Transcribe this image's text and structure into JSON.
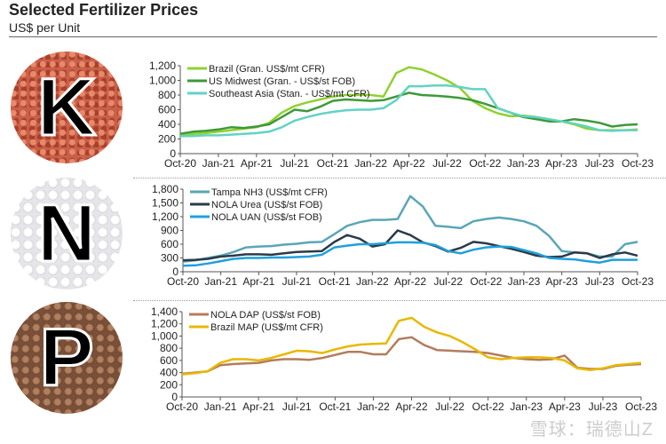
{
  "header": {
    "title": "Selected Fertilizer Prices",
    "subtitle": "US$ per Unit"
  },
  "panels": [
    {
      "letter": "K"
    },
    {
      "letter": "N"
    },
    {
      "letter": "P"
    }
  ],
  "watermark": "雪球：瑞德山Z",
  "chart_data": [
    {
      "type": "line",
      "title": "",
      "xlabel": "",
      "ylabel": "",
      "ylim": [
        0,
        1200
      ],
      "yticks": [
        "0",
        "200",
        "400",
        "600",
        "800",
        "1,000",
        "1,200"
      ],
      "x_tick_labels": [
        "Oct-20",
        "Jan-21",
        "Apr-21",
        "Jul-21",
        "Oct-21",
        "Jan-22",
        "Apr-22",
        "Jul-22",
        "Oct-22",
        "Jan-23",
        "Apr-23",
        "Jul-23",
        "Oct-23"
      ],
      "x": "monthly Oct-20 to Oct-23",
      "legend": "top-left",
      "series": [
        {
          "name": "Brazil (Gran. US$/mt CFR)",
          "color": "#8fd12f",
          "values": [
            260,
            270,
            280,
            300,
            320,
            340,
            360,
            420,
            560,
            650,
            700,
            740,
            780,
            800,
            800,
            800,
            780,
            1100,
            1180,
            1150,
            1080,
            1000,
            900,
            720,
            620,
            550,
            510,
            520,
            500,
            470,
            440,
            400,
            340,
            320,
            320,
            320,
            330
          ]
        },
        {
          "name": "US Midwest (Gran. - US$/st FOB)",
          "color": "#3c9a38",
          "values": [
            270,
            300,
            310,
            330,
            360,
            350,
            370,
            400,
            500,
            600,
            580,
            640,
            720,
            740,
            730,
            720,
            730,
            780,
            830,
            800,
            790,
            780,
            760,
            730,
            680,
            620,
            560,
            500,
            470,
            440,
            440,
            470,
            450,
            420,
            370,
            390,
            400
          ]
        },
        {
          "name": "Southeast Asia (Stan. - US$/mt CFR)",
          "color": "#62d3c4",
          "values": [
            240,
            240,
            250,
            250,
            260,
            270,
            280,
            300,
            360,
            450,
            500,
            540,
            570,
            590,
            600,
            600,
            620,
            730,
            920,
            920,
            930,
            930,
            910,
            880,
            880,
            620,
            560,
            510,
            500,
            470,
            440,
            410,
            370,
            320,
            310,
            320,
            320
          ]
        }
      ]
    },
    {
      "type": "line",
      "title": "",
      "xlabel": "",
      "ylabel": "",
      "ylim": [
        0,
        1800
      ],
      "yticks": [
        "0",
        "300",
        "600",
        "900",
        "1,200",
        "1,500",
        "1,800"
      ],
      "x_tick_labels": [
        "Oct-20",
        "Jan-21",
        "Apr-21",
        "Jul-21",
        "Oct-21",
        "Jan-22",
        "Apr-22",
        "Jul-22",
        "Oct-22",
        "Jan-23",
        "Apr-23",
        "Jul-23",
        "Oct-23"
      ],
      "x": "monthly Oct-20 to Oct-23",
      "legend": "top-left",
      "series": [
        {
          "name": "Tampa NH3 (US$/mt CFR)",
          "color": "#5aa6b6",
          "values": [
            220,
            250,
            300,
            350,
            430,
            530,
            550,
            560,
            590,
            610,
            640,
            650,
            820,
            1000,
            1080,
            1130,
            1130,
            1150,
            1650,
            1420,
            1000,
            980,
            950,
            1100,
            1150,
            1180,
            1150,
            1100,
            1000,
            780,
            450,
            420,
            400,
            330,
            330,
            600,
            650
          ]
        },
        {
          "name": "NOLA Urea (US$/st FOB)",
          "color": "#2b3a48",
          "values": [
            250,
            260,
            280,
            330,
            350,
            380,
            380,
            370,
            400,
            430,
            440,
            450,
            650,
            800,
            720,
            550,
            600,
            900,
            800,
            640,
            560,
            440,
            520,
            650,
            620,
            560,
            500,
            430,
            350,
            320,
            330,
            420,
            400,
            300,
            380,
            420,
            350
          ]
        },
        {
          "name": "NOLA UAN (US$/st FOB)",
          "color": "#1fa0dc",
          "values": [
            130,
            140,
            180,
            230,
            280,
            300,
            300,
            310,
            310,
            320,
            330,
            370,
            530,
            570,
            600,
            600,
            620,
            640,
            640,
            630,
            580,
            450,
            400,
            480,
            530,
            550,
            540,
            470,
            400,
            300,
            280,
            270,
            230,
            200,
            260,
            260,
            260
          ]
        }
      ]
    },
    {
      "type": "line",
      "title": "",
      "xlabel": "",
      "ylabel": "",
      "ylim": [
        0,
        1400
      ],
      "yticks": [
        "0",
        "200",
        "400",
        "600",
        "800",
        "1,000",
        "1,200",
        "1,400"
      ],
      "x_tick_labels": [
        "Oct-20",
        "Jan-21",
        "Apr-21",
        "Jul-21",
        "Oct-21",
        "Jan-22",
        "Apr-22",
        "Jul-22",
        "Oct-22",
        "Jan-23",
        "Apr-23",
        "Jul-23",
        "Oct-23"
      ],
      "x": "monthly Oct-20 to Oct-23",
      "legend": "top-left",
      "series": [
        {
          "name": "NOLA DAP (US$/st FOB)",
          "color": "#b47c5c",
          "values": [
            380,
            400,
            420,
            520,
            540,
            550,
            560,
            600,
            620,
            620,
            610,
            640,
            690,
            740,
            740,
            700,
            700,
            950,
            980,
            850,
            770,
            760,
            750,
            740,
            720,
            680,
            640,
            620,
            610,
            620,
            680,
            480,
            460,
            460,
            510,
            530,
            540
          ]
        },
        {
          "name": "Brazil MAP (US$/mt CFR)",
          "color": "#e8b800",
          "values": [
            370,
            390,
            420,
            560,
            620,
            620,
            600,
            640,
            700,
            760,
            750,
            720,
            780,
            830,
            860,
            870,
            880,
            1250,
            1300,
            1150,
            1060,
            1000,
            900,
            780,
            650,
            620,
            640,
            650,
            650,
            640,
            600,
            470,
            440,
            470,
            520,
            540,
            560
          ]
        }
      ]
    }
  ]
}
